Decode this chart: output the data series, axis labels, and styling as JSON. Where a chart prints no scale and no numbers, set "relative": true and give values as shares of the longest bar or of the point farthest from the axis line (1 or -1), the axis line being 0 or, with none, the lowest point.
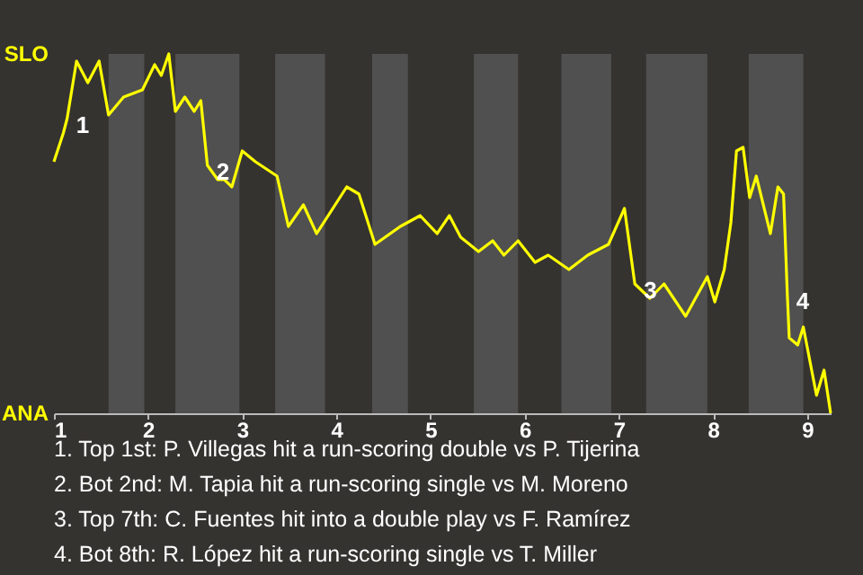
{
  "chart_data": {
    "type": "line",
    "relative": true,
    "x": [
      1,
      1.1,
      1.14,
      1.24,
      1.36,
      1.48,
      1.58,
      1.74,
      1.94,
      2.07,
      2.14,
      2.22,
      2.29,
      2.39,
      2.49,
      2.56,
      2.63,
      2.74,
      2.81,
      2.89,
      3.0,
      3.14,
      3.37,
      3.49,
      3.65,
      3.79,
      4.11,
      4.24,
      4.41,
      4.68,
      4.89,
      5.07,
      5.2,
      5.32,
      5.51,
      5.66,
      5.78,
      5.93,
      6.11,
      6.25,
      6.47,
      6.67,
      6.89,
      7.06,
      7.17,
      7.33,
      7.48,
      7.71,
      7.94,
      8.02,
      8.12,
      8.19,
      8.25,
      8.32,
      8.39,
      8.46,
      8.61,
      8.69,
      8.75,
      8.79,
      8.81,
      8.9,
      8.96,
      9.1,
      9.18,
      9.25
    ],
    "series": [
      {
        "color": "#ffff00",
        "values": [
          0.7,
          0.78,
          0.82,
          0.98,
          0.92,
          0.98,
          0.83,
          0.88,
          0.9,
          0.97,
          0.94,
          1,
          0.84,
          0.88,
          0.84,
          0.87,
          0.69,
          0.65,
          0.65,
          0.63,
          0.73,
          0.7,
          0.66,
          0.52,
          0.58,
          0.5,
          0.63,
          0.61,
          0.47,
          0.52,
          0.55,
          0.5,
          0.55,
          0.49,
          0.45,
          0.48,
          0.44,
          0.48,
          0.42,
          0.44,
          0.4,
          0.44,
          0.47,
          0.57,
          0.36,
          0.32,
          0.36,
          0.27,
          0.38,
          0.31,
          0.4,
          0.53,
          0.73,
          0.74,
          0.6,
          0.66,
          0.5,
          0.63,
          0.61,
          0.33,
          0.21,
          0.19,
          0.24,
          0.05,
          0.12,
          0
        ]
      }
    ],
    "xlim": [
      1,
      9.25
    ],
    "xticks": [
      1,
      2,
      3,
      4,
      5,
      6,
      7,
      8,
      9
    ],
    "bands": [
      {
        "axis": "x",
        "from": 1.58,
        "to": 1.96,
        "color": "#505050"
      },
      {
        "axis": "x",
        "from": 2.29,
        "to": 2.97,
        "color": "#505050"
      },
      {
        "axis": "x",
        "from": 3.35,
        "to": 3.88,
        "color": "#505050"
      },
      {
        "axis": "x",
        "from": 4.38,
        "to": 4.76,
        "color": "#505050"
      },
      {
        "axis": "x",
        "from": 5.46,
        "to": 5.93,
        "color": "#505050"
      },
      {
        "axis": "x",
        "from": 6.39,
        "to": 6.92,
        "color": "#505050"
      },
      {
        "axis": "x",
        "from": 7.29,
        "to": 7.94,
        "color": "#505050"
      },
      {
        "axis": "x",
        "from": 8.38,
        "to": 8.96,
        "color": "#505050"
      }
    ],
    "annotations": [
      "SLO",
      "ANA",
      {
        "text": "1",
        "x": 1.14,
        "y": 0.82
      },
      {
        "text": "2",
        "x": 2.63,
        "y": 0.69
      },
      {
        "text": "3",
        "x": 7.17,
        "y": 0.36
      },
      {
        "text": "4",
        "x": 8.79,
        "y": 0.33
      },
      "1. Top 1st: P. Villegas hit a run-scoring double vs P. Tijerina",
      "2. Bot 2nd: M. Tapia hit a run-scoring single vs M. Moreno",
      "3. Top 7th: C. Fuentes hit into a double play vs F. Ramírez",
      "4. Bot 8th: R. López hit a run-scoring single vs T. Miller"
    ]
  }
}
